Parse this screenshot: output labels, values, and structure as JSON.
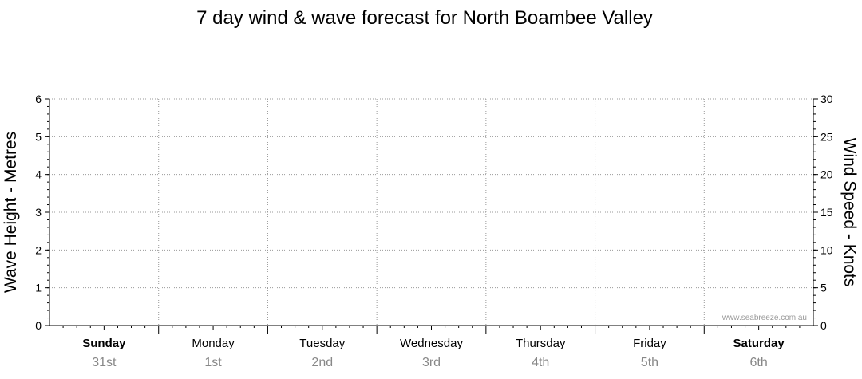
{
  "chart_data": {
    "type": "line",
    "title": "7 day wind & wave forecast for North Boambee Valley",
    "ylabel_left": "Wave Height - Metres",
    "ylabel_right": "Wind Speed - Knots",
    "ylim_left": [
      0,
      6
    ],
    "ylim_right": [
      0,
      30
    ],
    "yticks_left": [
      0,
      1,
      2,
      3,
      4,
      5,
      6
    ],
    "yticks_right": [
      0,
      5,
      10,
      15,
      20,
      25,
      30
    ],
    "days": [
      {
        "name": "Sunday",
        "date": "31st",
        "bold": true
      },
      {
        "name": "Monday",
        "date": "1st",
        "bold": false
      },
      {
        "name": "Tuesday",
        "date": "2nd",
        "bold": false
      },
      {
        "name": "Wednesday",
        "date": "3rd",
        "bold": false
      },
      {
        "name": "Thursday",
        "date": "4th",
        "bold": false
      },
      {
        "name": "Friday",
        "date": "5th",
        "bold": false
      },
      {
        "name": "Saturday",
        "date": "6th",
        "bold": true
      }
    ],
    "series": [],
    "grid": true,
    "colors": {
      "grid": "#999999",
      "axis": "#000000",
      "date_text": "#888888"
    },
    "credit": "www.seabreeze.com.au"
  }
}
